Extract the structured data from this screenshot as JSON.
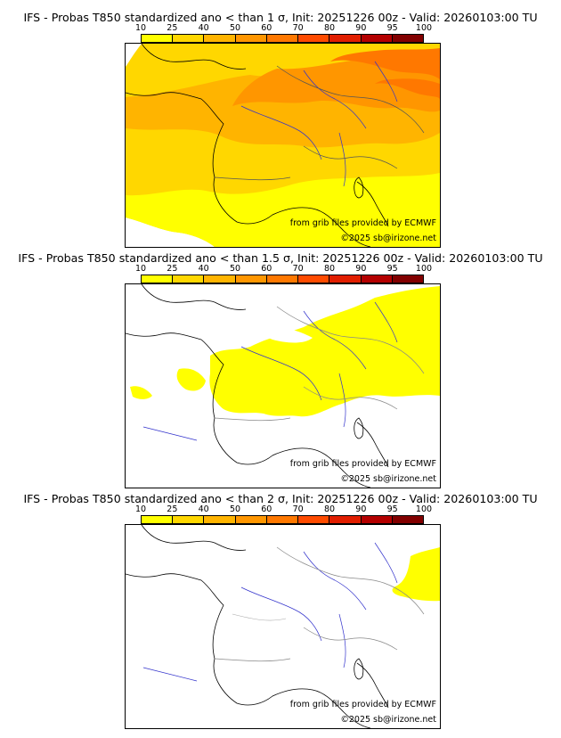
{
  "scale": {
    "ticks": [
      "10",
      "25",
      "40",
      "50",
      "60",
      "70",
      "80",
      "90",
      "95",
      "100"
    ],
    "colors": [
      "#ffff00",
      "#ffd700",
      "#ffb400",
      "#ff9600",
      "#ff7800",
      "#ff4b00",
      "#e11e00",
      "#b40000",
      "#820000"
    ]
  },
  "panels": [
    {
      "title": "IFS - Probas T850  standardized ano < than 1 σ, Init: 20251226 00z - Valid: 20260103:00 TU",
      "credit_source": "from grib files provided by ECMWF",
      "credit_copyright": "©2025 sb@irizone.net"
    },
    {
      "title": "IFS - Probas T850  standardized ano < than 1.5 σ, Init: 20251226 00z - Valid: 20260103:00 TU",
      "credit_source": "from grib files provided by ECMWF",
      "credit_copyright": "©2025 sb@irizone.net"
    },
    {
      "title": "IFS - Probas T850  standardized ano < than 2 σ, Init: 20251226 00z - Valid: 20260103:00 TU",
      "credit_source": "from grib files provided by ECMWF",
      "credit_copyright": "©2025 sb@irizone.net"
    }
  ]
}
